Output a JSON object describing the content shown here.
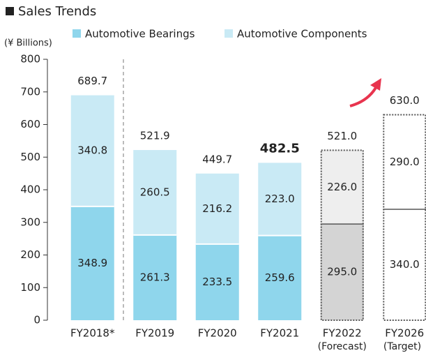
{
  "chart_data": {
    "type": "stacked_bar",
    "title": "Sales Trends",
    "y_axis_label": "(¥ Billions)",
    "categories": [
      "FY2018*",
      "FY2019",
      "FY2020",
      "FY2021",
      "FY2022",
      "FY2026"
    ],
    "category_subtitles": [
      null,
      null,
      null,
      null,
      "(Forecast)",
      "(Target)"
    ],
    "series": [
      {
        "name": "Automotive Bearings",
        "color": "#8fd6ec",
        "bar_colors": [
          "#8fd6ec",
          "#8fd6ec",
          "#8fd6ec",
          "#8fd6ec",
          "#d4d4d4",
          "#ffffff"
        ],
        "values": [
          348.9,
          261.3,
          233.5,
          259.6,
          295.0,
          340.0
        ],
        "value_labels": [
          "348.9",
          "261.3",
          "233.5",
          "259.6",
          "295.0",
          "340.0"
        ]
      },
      {
        "name": "Automotive Components",
        "color": "#c9eaf5",
        "bar_colors": [
          "#c9eaf5",
          "#c9eaf5",
          "#c9eaf5",
          "#c9eaf5",
          "#eeeeee",
          "#ffffff"
        ],
        "values": [
          340.8,
          260.5,
          216.2,
          223.0,
          226.0,
          290.0
        ],
        "value_labels": [
          "340.8",
          "260.5",
          "216.2",
          "223.0",
          "226.0",
          "290.0"
        ]
      }
    ],
    "totals": [
      689.7,
      521.9,
      449.7,
      482.5,
      521.0,
      630.0
    ],
    "total_labels": [
      "689.7",
      "521.9",
      "449.7",
      "482.5",
      "521.0",
      "630.0"
    ],
    "dotted_border": [
      false,
      false,
      false,
      false,
      true,
      true
    ],
    "ylim": [
      0,
      800
    ],
    "yticks": [
      0,
      100,
      200,
      300,
      400,
      500,
      600,
      700,
      800
    ]
  }
}
